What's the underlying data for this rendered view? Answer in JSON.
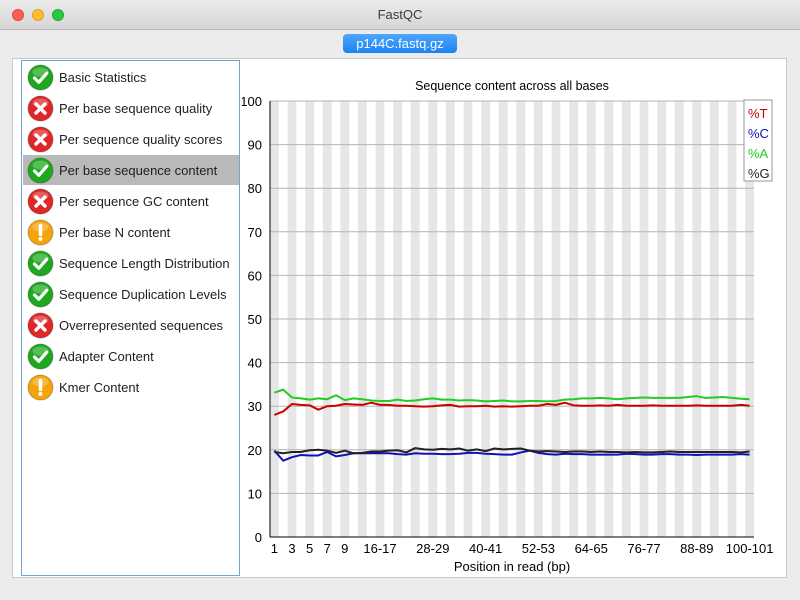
{
  "window": {
    "title": "FastQC"
  },
  "file_tab": "p144C.fastq.gz",
  "modules": [
    {
      "label": "Basic Statistics",
      "status": "pass",
      "icon": "pass-icon"
    },
    {
      "label": "Per base sequence quality",
      "status": "fail",
      "icon": "fail-icon"
    },
    {
      "label": "Per sequence quality scores",
      "status": "fail",
      "icon": "fail-icon"
    },
    {
      "label": "Per base sequence content",
      "status": "pass",
      "icon": "pass-icon",
      "selected": true
    },
    {
      "label": "Per sequence GC content",
      "status": "fail",
      "icon": "fail-icon"
    },
    {
      "label": "Per base N content",
      "status": "warn",
      "icon": "warn-icon"
    },
    {
      "label": "Sequence Length Distribution",
      "status": "pass",
      "icon": "pass-icon"
    },
    {
      "label": "Sequence Duplication Levels",
      "status": "pass",
      "icon": "pass-icon"
    },
    {
      "label": "Overrepresented sequences",
      "status": "fail",
      "icon": "fail-icon"
    },
    {
      "label": "Adapter Content",
      "status": "pass",
      "icon": "pass-icon"
    },
    {
      "label": "Kmer Content",
      "status": "warn",
      "icon": "warn-icon"
    }
  ],
  "colors": {
    "pass": "#1fa81f",
    "fail": "#e02727",
    "warn": "#f5a30a",
    "selection": "#b9b9b9"
  },
  "chart_data": {
    "type": "line",
    "title": "Sequence content across all bases",
    "xlabel": "Position in read (bp)",
    "ylabel": "",
    "ylim": [
      0,
      100
    ],
    "yticks": [
      "0",
      "10",
      "20",
      "30",
      "40",
      "50",
      "60",
      "70",
      "80",
      "90",
      "100"
    ],
    "x": [
      "1",
      "2",
      "3",
      "4",
      "5",
      "6",
      "7",
      "8",
      "9",
      "10-11",
      "12-13",
      "14-15",
      "16-17",
      "18-19",
      "20-21",
      "22-23",
      "24-25",
      "26-27",
      "28-29",
      "30-31",
      "32-33",
      "34-35",
      "36-37",
      "38-39",
      "40-41",
      "42-43",
      "44-45",
      "46-47",
      "48-49",
      "50-51",
      "52-53",
      "54-55",
      "56-57",
      "58-59",
      "60-61",
      "62-63",
      "64-65",
      "66-67",
      "68-69",
      "70-71",
      "72-73",
      "74-75",
      "76-77",
      "78-79",
      "80-81",
      "82-83",
      "84-85",
      "86-87",
      "88-89",
      "90-91",
      "92-93",
      "94-95",
      "96-97",
      "98-99",
      "100-101"
    ],
    "xtick_labels": [
      "1",
      "3",
      "5",
      "7",
      "9",
      "16-17",
      "28-29",
      "40-41",
      "52-53",
      "64-65",
      "76-77",
      "88-89",
      "100-101"
    ],
    "xtick_index": [
      0,
      2,
      4,
      6,
      8,
      12,
      18,
      24,
      30,
      36,
      42,
      48,
      54
    ],
    "legend_position": "top-right",
    "grid": true,
    "series": [
      {
        "name": "%T",
        "color": "#cc0000",
        "values": [
          28,
          28.8,
          30.5,
          30.3,
          30.2,
          29.2,
          30,
          30.1,
          30.5,
          30.4,
          30.3,
          30.8,
          30.3,
          30.3,
          30.1,
          30.1,
          30,
          29.9,
          30,
          30.2,
          30.3,
          29.9,
          30,
          30,
          30.1,
          29.9,
          30,
          29.9,
          30,
          30.1,
          30.1,
          30.5,
          30.3,
          30.8,
          30.2,
          30.1,
          30.1,
          30.2,
          30.1,
          30.3,
          30.1,
          30.1,
          30.1,
          30.2,
          30.1,
          30.1,
          30.1,
          30.1,
          30.2,
          30.1,
          30.1,
          30.1,
          30.1,
          30.3,
          30.1
        ]
      },
      {
        "name": "%C",
        "color": "#1111bb",
        "values": [
          19.8,
          17.5,
          18.3,
          18.8,
          18.7,
          18.7,
          19.5,
          18.5,
          18.8,
          19.2,
          19.2,
          19.2,
          19.2,
          19.2,
          19,
          18.9,
          19.2,
          19.1,
          19.1,
          19,
          19,
          19.1,
          19.3,
          19.3,
          19.1,
          19,
          18.9,
          18.9,
          19.4,
          19.8,
          19.3,
          19,
          18.9,
          19.1,
          19,
          19,
          18.9,
          18.9,
          18.9,
          18.9,
          19.1,
          19,
          18.9,
          18.9,
          19,
          19,
          18.9,
          18.9,
          18.8,
          18.9,
          18.9,
          18.9,
          18.9,
          19,
          18.9
        ]
      },
      {
        "name": "%A",
        "color": "#22cc22",
        "values": [
          33.1,
          33.8,
          32,
          31.8,
          31.5,
          31.8,
          31.6,
          32.5,
          31.4,
          31.8,
          31.6,
          31.3,
          31.2,
          31.2,
          31.5,
          31.2,
          31.3,
          31.6,
          31.8,
          31.5,
          31.5,
          31.3,
          31.4,
          31.3,
          31.1,
          31.2,
          31.3,
          31.1,
          31.1,
          31.2,
          31.2,
          31.1,
          31.2,
          31.5,
          31.6,
          31.8,
          31.8,
          31.9,
          31.8,
          31.6,
          31.8,
          31.9,
          32,
          31.9,
          31.9,
          31.9,
          31.9,
          32.1,
          32.3,
          31.9,
          32,
          32.1,
          31.9,
          31.7,
          31.6
        ]
      },
      {
        "name": "%G",
        "color": "#222222",
        "values": [
          19.5,
          19.2,
          19.5,
          19.5,
          19.9,
          20,
          19.8,
          19.3,
          19.8,
          19.2,
          19.3,
          19.6,
          19.6,
          19.8,
          19.9,
          19.4,
          20.4,
          20.1,
          20,
          20.2,
          20.1,
          20.3,
          19.8,
          20.1,
          19.7,
          20.3,
          20.1,
          20.2,
          20.3,
          19.8,
          19.6,
          19.7,
          19.6,
          19.5,
          19.6,
          19.6,
          19.5,
          19.6,
          19.5,
          19.5,
          19.4,
          19.5,
          19.4,
          19.4,
          19.5,
          19.6,
          19.5,
          19.5,
          19.5,
          19.5,
          19.5,
          19.5,
          19.5,
          19.4,
          19.6
        ]
      }
    ]
  }
}
